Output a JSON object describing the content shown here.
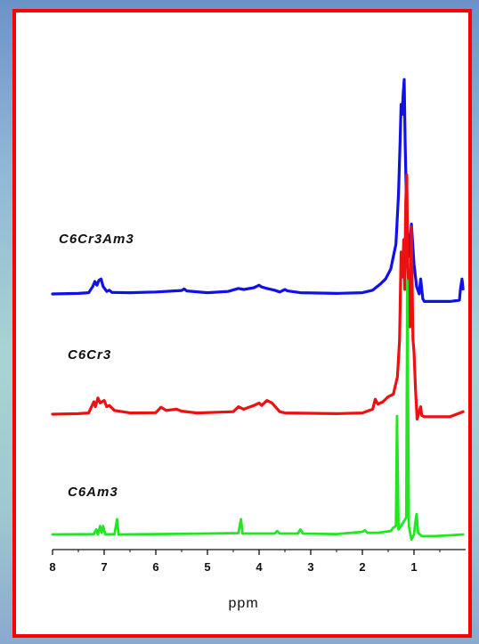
{
  "chart_data": {
    "type": "line",
    "xlabel": "ppm",
    "x_reversed": true,
    "xlim": [
      8,
      0
    ],
    "ticks": [
      8,
      7,
      6,
      5,
      4,
      3,
      2,
      1
    ],
    "tick_labels": [
      "8",
      "7",
      "6",
      "5",
      "4",
      "3",
      "2",
      "1"
    ],
    "series": [
      {
        "name": "C6Cr3Am3",
        "color": "#1010e8",
        "points": [
          [
            8.0,
            0.0
          ],
          [
            7.5,
            0.02
          ],
          [
            7.3,
            0.05
          ],
          [
            7.22,
            0.3
          ],
          [
            7.18,
            0.5
          ],
          [
            7.14,
            0.35
          ],
          [
            7.1,
            0.55
          ],
          [
            7.06,
            0.6
          ],
          [
            7.02,
            0.3
          ],
          [
            6.95,
            0.1
          ],
          [
            6.9,
            0.15
          ],
          [
            6.85,
            0.06
          ],
          [
            6.5,
            0.05
          ],
          [
            6.0,
            0.08
          ],
          [
            5.5,
            0.14
          ],
          [
            5.45,
            0.2
          ],
          [
            5.4,
            0.12
          ],
          [
            5.0,
            0.05
          ],
          [
            4.6,
            0.1
          ],
          [
            4.4,
            0.22
          ],
          [
            4.3,
            0.18
          ],
          [
            4.1,
            0.25
          ],
          [
            4.0,
            0.35
          ],
          [
            3.95,
            0.28
          ],
          [
            3.85,
            0.22
          ],
          [
            3.7,
            0.15
          ],
          [
            3.6,
            0.08
          ],
          [
            3.5,
            0.18
          ],
          [
            3.45,
            0.12
          ],
          [
            3.2,
            0.05
          ],
          [
            2.5,
            0.02
          ],
          [
            2.0,
            0.05
          ],
          [
            1.8,
            0.15
          ],
          [
            1.65,
            0.4
          ],
          [
            1.55,
            0.6
          ],
          [
            1.45,
            1.0
          ],
          [
            1.35,
            2.0
          ],
          [
            1.3,
            4.0
          ],
          [
            1.27,
            6.0
          ],
          [
            1.25,
            7.6
          ],
          [
            1.23,
            7.2
          ],
          [
            1.21,
            8.0
          ],
          [
            1.19,
            8.6
          ],
          [
            1.17,
            6.0
          ],
          [
            1.14,
            3.0
          ],
          [
            1.1,
            1.5
          ],
          [
            1.05,
            2.8
          ],
          [
            1.0,
            1.2
          ],
          [
            0.95,
            0.3
          ],
          [
            0.9,
            0.0
          ],
          [
            0.87,
            0.6
          ],
          [
            0.83,
            -0.2
          ],
          [
            0.8,
            -0.3
          ],
          [
            0.6,
            -0.3
          ],
          [
            0.3,
            -0.3
          ],
          [
            0.12,
            -0.25
          ],
          [
            0.1,
            0.2
          ],
          [
            0.07,
            0.6
          ],
          [
            0.05,
            0.2
          ]
        ]
      },
      {
        "name": "C6Cr3",
        "color": "#ee1010",
        "points": [
          [
            8.0,
            0.0
          ],
          [
            7.5,
            0.02
          ],
          [
            7.3,
            0.05
          ],
          [
            7.2,
            0.5
          ],
          [
            7.17,
            0.3
          ],
          [
            7.12,
            0.65
          ],
          [
            7.08,
            0.45
          ],
          [
            7.0,
            0.55
          ],
          [
            6.95,
            0.3
          ],
          [
            6.9,
            0.35
          ],
          [
            6.8,
            0.15
          ],
          [
            6.5,
            0.05
          ],
          [
            6.0,
            0.06
          ],
          [
            5.9,
            0.28
          ],
          [
            5.8,
            0.15
          ],
          [
            5.6,
            0.2
          ],
          [
            5.5,
            0.12
          ],
          [
            5.2,
            0.05
          ],
          [
            4.5,
            0.1
          ],
          [
            4.4,
            0.3
          ],
          [
            4.3,
            0.2
          ],
          [
            4.1,
            0.35
          ],
          [
            4.0,
            0.45
          ],
          [
            3.95,
            0.35
          ],
          [
            3.85,
            0.55
          ],
          [
            3.75,
            0.45
          ],
          [
            3.6,
            0.1
          ],
          [
            3.5,
            0.05
          ],
          [
            2.5,
            0.02
          ],
          [
            2.0,
            0.05
          ],
          [
            1.8,
            0.2
          ],
          [
            1.75,
            0.6
          ],
          [
            1.7,
            0.4
          ],
          [
            1.6,
            0.5
          ],
          [
            1.5,
            0.7
          ],
          [
            1.4,
            0.8
          ],
          [
            1.32,
            1.5
          ],
          [
            1.28,
            3.0
          ],
          [
            1.25,
            6.5
          ],
          [
            1.22,
            5.5
          ],
          [
            1.2,
            7.0
          ],
          [
            1.18,
            5.0
          ],
          [
            1.16,
            8.5
          ],
          [
            1.14,
            9.6
          ],
          [
            1.12,
            6.0
          ],
          [
            1.08,
            3.5
          ],
          [
            1.05,
            7.5
          ],
          [
            1.02,
            3.0
          ],
          [
            1.0,
            2.5
          ],
          [
            0.97,
            1.0
          ],
          [
            0.94,
            -0.2
          ],
          [
            0.9,
            0.1
          ],
          [
            0.87,
            0.3
          ],
          [
            0.85,
            -0.05
          ],
          [
            0.8,
            -0.1
          ],
          [
            0.6,
            -0.1
          ],
          [
            0.3,
            -0.1
          ],
          [
            0.05,
            0.1
          ]
        ]
      },
      {
        "name": "C6Am3",
        "color": "#22e622",
        "points": [
          [
            8.0,
            0.0
          ],
          [
            7.2,
            0.02
          ],
          [
            7.15,
            0.3
          ],
          [
            7.12,
            0.0
          ],
          [
            7.08,
            0.5
          ],
          [
            7.05,
            0.1
          ],
          [
            7.02,
            0.5
          ],
          [
            6.98,
            0.0
          ],
          [
            6.8,
            0.02
          ],
          [
            6.75,
            0.9
          ],
          [
            6.72,
            0.0
          ],
          [
            6.0,
            0.02
          ],
          [
            5.0,
            0.05
          ],
          [
            4.4,
            0.08
          ],
          [
            4.35,
            0.9
          ],
          [
            4.32,
            0.05
          ],
          [
            3.7,
            0.05
          ],
          [
            3.65,
            0.2
          ],
          [
            3.6,
            0.05
          ],
          [
            3.25,
            0.05
          ],
          [
            3.2,
            0.3
          ],
          [
            3.15,
            0.05
          ],
          [
            2.5,
            0.02
          ],
          [
            2.0,
            0.15
          ],
          [
            1.95,
            0.25
          ],
          [
            1.9,
            0.1
          ],
          [
            1.7,
            0.1
          ],
          [
            1.45,
            0.2
          ],
          [
            1.4,
            0.4
          ],
          [
            1.35,
            0.5
          ],
          [
            1.33,
            7.0
          ],
          [
            1.3,
            0.3
          ],
          [
            1.25,
            0.5
          ],
          [
            1.15,
            1.0
          ],
          [
            1.13,
            15.0
          ],
          [
            1.1,
            0.5
          ],
          [
            1.05,
            -0.3
          ],
          [
            1.0,
            0.0
          ],
          [
            0.98,
            0.6
          ],
          [
            0.95,
            1.2
          ],
          [
            0.92,
            0.1
          ],
          [
            0.85,
            -0.1
          ],
          [
            0.6,
            -0.1
          ],
          [
            0.3,
            -0.05
          ],
          [
            0.05,
            0.0
          ]
        ]
      }
    ]
  }
}
